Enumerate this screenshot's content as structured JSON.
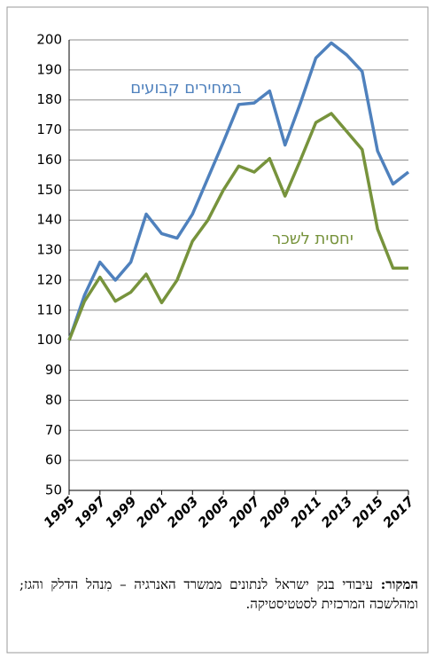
{
  "chart_data": {
    "type": "line",
    "x": [
      1995,
      1996,
      1997,
      1998,
      1999,
      2000,
      2001,
      2002,
      2003,
      2004,
      2005,
      2006,
      2007,
      2008,
      2009,
      2010,
      2011,
      2012,
      2013,
      2014,
      2015,
      2016,
      2017
    ],
    "series": [
      {
        "name": "במחירים קבועים",
        "color": "#4f81bd",
        "values": [
          100,
          115,
          126,
          120,
          126,
          142,
          135.5,
          134,
          142,
          154,
          166,
          178.5,
          179,
          183,
          165,
          179,
          194,
          199,
          195,
          189.5,
          163,
          152,
          156
        ]
      },
      {
        "name": "יחסית לשכר",
        "color": "#77933c",
        "values": [
          100,
          113,
          121,
          113,
          116,
          122,
          112.5,
          120,
          133,
          140,
          150,
          158,
          156,
          160.5,
          148,
          160,
          172.5,
          175.5,
          169.5,
          163.5,
          137,
          124,
          124
        ]
      }
    ],
    "xlim": [
      1995,
      2017
    ],
    "xticks": [
      1995,
      1997,
      1999,
      2001,
      2003,
      2005,
      2007,
      2009,
      2011,
      2013,
      2015,
      2017
    ],
    "ylim": [
      50,
      200
    ],
    "yticks": [
      50,
      60,
      70,
      80,
      90,
      100,
      110,
      120,
      130,
      140,
      150,
      160,
      170,
      180,
      190,
      200
    ],
    "grid": true
  },
  "source": {
    "label": "המקור:",
    "text": "עיבודי בנק ישראל לנתונים ממשרד האנרגיה – מִנהל הדלק והגז; ומהלשכה המרכזית לסטטיסטיקה."
  }
}
